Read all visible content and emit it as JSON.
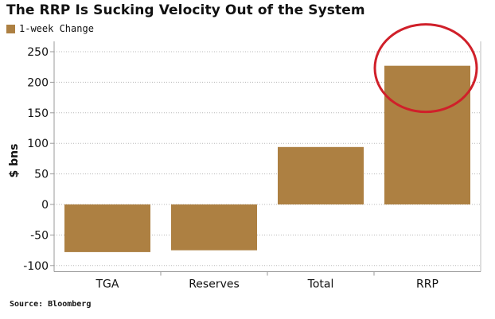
{
  "title": "The RRP Is Sucking Velocity Out of the System",
  "source": "Source: Bloomberg",
  "chart_data": {
    "type": "bar",
    "title": "The RRP Is Sucking Velocity Out of the System",
    "categories": [
      "TGA",
      "Reserves",
      "Total",
      "RRP"
    ],
    "series": [
      {
        "name": "1-week Change",
        "values": [
          -78,
          -75,
          94,
          227
        ],
        "color": "#AD8042"
      }
    ],
    "ylabel": "$ bns",
    "xlabel": "",
    "ylim": [
      -110,
      260
    ],
    "yticks": [
      250,
      200,
      150,
      100,
      50,
      0,
      -50,
      -100
    ],
    "grid": true,
    "legend": "top-left",
    "annotation": {
      "type": "circle",
      "target": "RRP",
      "color": "#d0202a"
    }
  }
}
